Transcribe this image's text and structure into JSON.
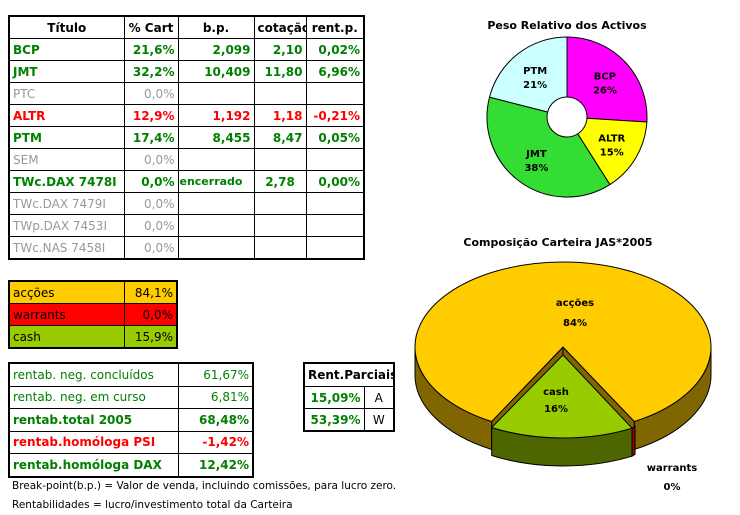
{
  "holdings": {
    "headers": [
      "Título",
      "% Cart",
      "b.p.",
      "cotação",
      "rent.p."
    ],
    "rows": [
      {
        "titulo": "BCP",
        "cart": "21,6%",
        "bp": "2,099",
        "cotacao": "2,10",
        "rent": "0,02%",
        "style": "green"
      },
      {
        "titulo": "JMT",
        "cart": "32,2%",
        "bp": "10,409",
        "cotacao": "11,80",
        "rent": "6,96%",
        "style": "green"
      },
      {
        "titulo": "PTC",
        "cart": "0,0%",
        "bp": "",
        "cotacao": "",
        "rent": "",
        "style": "gray"
      },
      {
        "titulo": "ALTR",
        "cart": "12,9%",
        "bp": "1,192",
        "cotacao": "1,18",
        "rent": "-0,21%",
        "style": "red"
      },
      {
        "titulo": "PTM",
        "cart": "17,4%",
        "bp": "8,455",
        "cotacao": "8,47",
        "rent": "0,05%",
        "style": "green"
      },
      {
        "titulo": "SEM",
        "cart": "0,0%",
        "bp": "",
        "cotacao": "",
        "rent": "",
        "style": "gray"
      },
      {
        "titulo": "TWc.DAX 7478I",
        "cart": "0,0%",
        "bp": "encerrado",
        "cotacao": "2,78",
        "rent": "0,00%",
        "style": "green"
      },
      {
        "titulo": "TWc.DAX 7479I",
        "cart": "0,0%",
        "bp": "",
        "cotacao": "",
        "rent": "",
        "style": "gray"
      },
      {
        "titulo": "TWp.DAX 7453I",
        "cart": "0,0%",
        "bp": "",
        "cotacao": "",
        "rent": "",
        "style": "gray"
      },
      {
        "titulo": "TWc.NAS 7458I",
        "cart": "0,0%",
        "bp": "",
        "cotacao": "",
        "rent": "",
        "style": "gray"
      }
    ]
  },
  "allocation": [
    {
      "label": "acções",
      "value": "84,1%",
      "color": "#ffcc00"
    },
    {
      "label": "warrants",
      "value": "0,0%",
      "color": "#ff0000"
    },
    {
      "label": "cash",
      "value": "15,9%",
      "color": "#99cc00"
    }
  ],
  "returns": [
    {
      "label": "rentab. neg. concluídos",
      "value": "61,67%",
      "style": "green"
    },
    {
      "label": "rentab. neg. em curso",
      "value": "6,81%",
      "style": "green"
    },
    {
      "label": "rentab.total 2005",
      "value": "68,48%",
      "style": "greenbold"
    },
    {
      "label": "rentab.homóloga PSI",
      "value": "-1,42%",
      "style": "redbold"
    },
    {
      "label": "rentab.homóloga DAX",
      "value": "12,42%",
      "style": "greenbold"
    }
  ],
  "partial": {
    "title": "Rent.Parciais",
    "rows": [
      {
        "value": "15,09%",
        "key": "A"
      },
      {
        "value": "53,39%",
        "key": "W"
      }
    ]
  },
  "notes": [
    "Break-point(b.p.) = Valor de venda, incluindo comissões, para lucro zero.",
    "Rentabilidades = lucro/investimento total da Carteira"
  ],
  "chart_data": [
    {
      "type": "pie",
      "title": "Peso Relativo dos Activos",
      "donut": true,
      "categories": [
        "BCP",
        "ALTR",
        "JMT",
        "PTM"
      ],
      "values": [
        26,
        15,
        38,
        21
      ],
      "labels": [
        "26%",
        "15%",
        "38%",
        "21%"
      ],
      "colors": [
        "#ff00ff",
        "#ffff00",
        "#33dd33",
        "#ccffff"
      ]
    },
    {
      "type": "pie",
      "title": "Composição Carteira JAS*2005",
      "3d": true,
      "categories": [
        "acções",
        "warrants",
        "cash"
      ],
      "values": [
        84,
        0,
        16
      ],
      "labels": [
        "84%",
        "0%",
        "16%"
      ],
      "colors": [
        "#ffcc00",
        "#990000",
        "#99cc00"
      ]
    }
  ]
}
